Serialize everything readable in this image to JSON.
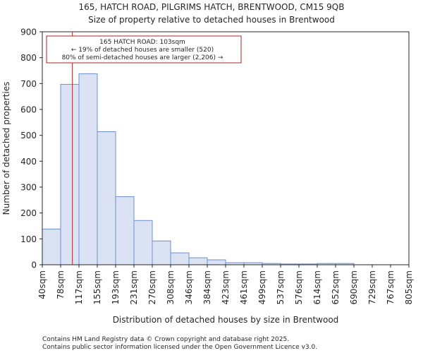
{
  "chart_data": {
    "type": "bar",
    "title_line1": "165, HATCH ROAD, PILGRIMS HATCH, BRENTWOOD, CM15 9QB",
    "title_line2": "Size of property relative to detached houses in Brentwood",
    "xlabel": "Distribution of detached houses by size in Brentwood",
    "ylabel": "Number of detached properties",
    "bin_edges": [
      40,
      78,
      117,
      155,
      193,
      231,
      270,
      308,
      346,
      384,
      423,
      461,
      499,
      537,
      576,
      614,
      652,
      690,
      729,
      767,
      805
    ],
    "tick_labels": [
      "40sqm",
      "78sqm",
      "117sqm",
      "155sqm",
      "193sqm",
      "231sqm",
      "270sqm",
      "308sqm",
      "346sqm",
      "384sqm",
      "423sqm",
      "461sqm",
      "499sqm",
      "537sqm",
      "576sqm",
      "614sqm",
      "652sqm",
      "690sqm",
      "729sqm",
      "767sqm",
      "805sqm"
    ],
    "values": [
      138,
      697,
      738,
      514,
      263,
      171,
      92,
      46,
      27,
      19,
      8,
      8,
      5,
      3,
      3,
      5,
      5,
      0,
      0,
      0
    ],
    "ylim": [
      0,
      900
    ],
    "yticks": [
      0,
      100,
      200,
      300,
      400,
      500,
      600,
      700,
      800,
      900
    ],
    "bar_color": "#dae2f4",
    "bar_edge_color": "#6e8fcb",
    "marker": {
      "value": 103,
      "color": "#b22222",
      "label_line1": "165 HATCH ROAD: 103sqm",
      "label_line2": "← 19% of detached houses are smaller (520)",
      "label_line3": "80% of semi-detached houses are larger (2,206) →"
    },
    "footer_line1": "Contains HM Land Registry data © Crown copyright and database right 2025.",
    "footer_line2": "Contains public sector information licensed under the Open Government Licence v3.0."
  }
}
